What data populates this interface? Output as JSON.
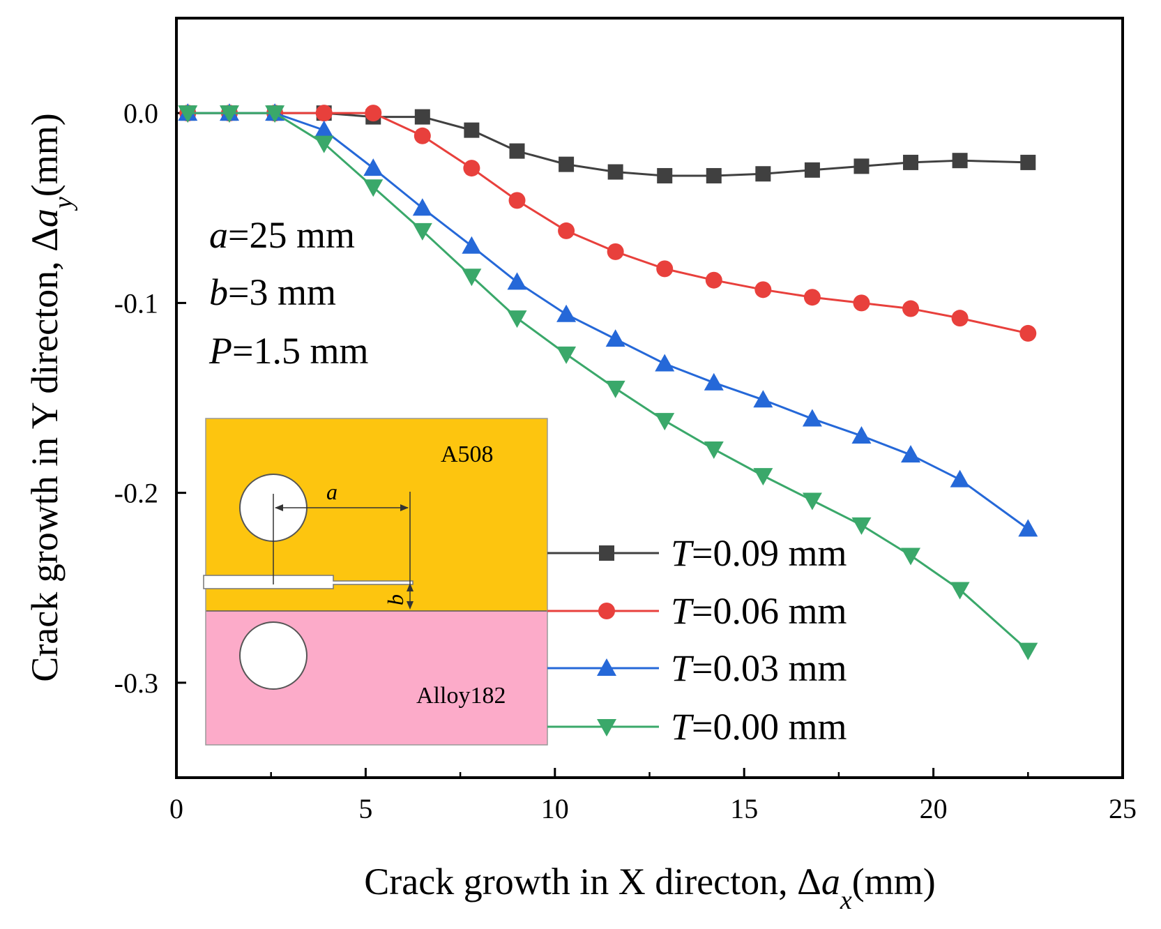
{
  "chart_data": {
    "type": "line",
    "xlabel": "Crack growth in X directon, Δa_x(mm)",
    "ylabel": "Crack growth in Y directon, Δa_y(mm)",
    "xlabel_parts": {
      "text": "Crack growth in X directon, Δ",
      "var": "a",
      "sub": "x",
      "unit": "(mm)"
    },
    "ylabel_parts": {
      "text": "Crack growth in Y directon, Δ",
      "var": "a",
      "sub": "y",
      "unit": "(mm)"
    },
    "xlim": [
      0,
      25
    ],
    "ylim": [
      -0.35,
      0.05
    ],
    "xticks": [
      0,
      5,
      10,
      15,
      20,
      25
    ],
    "xtick_labels": [
      "0",
      "5",
      "10",
      "15",
      "20",
      "25"
    ],
    "yticks": [
      0.0,
      -0.1,
      -0.2,
      -0.3
    ],
    "ytick_labels": [
      "0.0",
      "-0.1",
      "-0.2",
      "-0.3"
    ],
    "grid": false,
    "legend_position": "bottom-right",
    "parameters": [
      {
        "var": "a",
        "text": "=25 mm"
      },
      {
        "var": "b",
        "text": "=3 mm"
      },
      {
        "var": "P",
        "text": "=1.5 mm"
      }
    ],
    "series": [
      {
        "name": "T=0.09 mm",
        "var": "T",
        "label_text": "=0.09 mm",
        "color": "#404040",
        "marker": "square",
        "x": [
          0.3,
          1.4,
          2.6,
          3.9,
          5.2,
          6.5,
          7.8,
          9.0,
          10.3,
          11.6,
          12.9,
          14.2,
          15.5,
          16.8,
          18.1,
          19.4,
          20.7,
          22.5
        ],
        "y": [
          0.0,
          0.0,
          0.0,
          0.0,
          -0.002,
          -0.002,
          -0.009,
          -0.02,
          -0.027,
          -0.031,
          -0.033,
          -0.033,
          -0.032,
          -0.03,
          -0.028,
          -0.026,
          -0.025,
          -0.026
        ]
      },
      {
        "name": "T=0.06 mm",
        "var": "T",
        "label_text": "=0.06 mm",
        "color": "#e8403c",
        "marker": "circle",
        "x": [
          0.3,
          1.4,
          2.6,
          3.9,
          5.2,
          6.5,
          7.8,
          9.0,
          10.3,
          11.6,
          12.9,
          14.2,
          15.5,
          16.8,
          18.1,
          19.4,
          20.7,
          22.5
        ],
        "y": [
          0.0,
          0.0,
          0.0,
          0.0,
          0.0,
          -0.012,
          -0.029,
          -0.046,
          -0.062,
          -0.073,
          -0.082,
          -0.088,
          -0.093,
          -0.097,
          -0.1,
          -0.103,
          -0.108,
          -0.116
        ]
      },
      {
        "name": "T=0.03 mm",
        "var": "T",
        "label_text": "=0.03 mm",
        "color": "#2568d8",
        "marker": "triangle-up",
        "x": [
          0.3,
          1.4,
          2.6,
          3.9,
          5.2,
          6.5,
          7.8,
          9.0,
          10.3,
          11.6,
          12.9,
          14.2,
          15.5,
          16.8,
          18.1,
          19.4,
          20.7,
          22.5
        ],
        "y": [
          0.0,
          0.0,
          0.0,
          -0.009,
          -0.029,
          -0.05,
          -0.07,
          -0.089,
          -0.106,
          -0.119,
          -0.132,
          -0.142,
          -0.151,
          -0.161,
          -0.17,
          -0.18,
          -0.193,
          -0.219
        ]
      },
      {
        "name": "T=0.00 mm",
        "var": "T",
        "label_text": "=0.00 mm",
        "color": "#3aa86a",
        "marker": "triangle-down",
        "x": [
          0.3,
          1.4,
          2.6,
          3.9,
          5.2,
          6.5,
          7.8,
          9.0,
          10.3,
          11.6,
          12.9,
          14.2,
          15.5,
          16.8,
          18.1,
          19.4,
          20.7,
          22.5
        ],
        "y": [
          0.0,
          0.0,
          0.0,
          -0.016,
          -0.039,
          -0.062,
          -0.086,
          -0.108,
          -0.127,
          -0.145,
          -0.162,
          -0.177,
          -0.191,
          -0.204,
          -0.217,
          -0.233,
          -0.251,
          -0.283
        ]
      }
    ],
    "inset": {
      "upper_material": "A508",
      "lower_material": "Alloy182",
      "dim_a": "a",
      "dim_b": "b",
      "upper_color": "#fdc50f",
      "lower_color": "#fcabc9"
    }
  }
}
